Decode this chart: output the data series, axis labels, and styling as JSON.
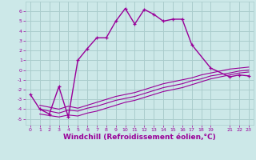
{
  "background_color": "#cce8e8",
  "grid_color": "#aacccc",
  "line_color": "#990099",
  "xlabel": "Windchill (Refroidissement éolien,°C)",
  "xlabel_fontsize": 6.5,
  "xticks": [
    0,
    1,
    2,
    3,
    4,
    5,
    6,
    7,
    8,
    9,
    10,
    11,
    12,
    13,
    14,
    15,
    16,
    17,
    18,
    19,
    21,
    22,
    23
  ],
  "yticks": [
    -5,
    -4,
    -3,
    -2,
    -1,
    0,
    1,
    2,
    3,
    4,
    5,
    6
  ],
  "xlim": [
    -0.5,
    23.5
  ],
  "ylim": [
    -5.6,
    7.0
  ],
  "main_line_x": [
    0,
    1,
    2,
    3,
    4,
    5,
    6,
    7,
    8,
    9,
    10,
    11,
    12,
    13,
    14,
    15,
    16,
    17,
    19,
    21,
    22,
    23
  ],
  "main_line_y": [
    -2.5,
    -4.0,
    -4.5,
    -1.7,
    -4.8,
    1.0,
    2.2,
    3.3,
    3.3,
    5.0,
    6.3,
    4.7,
    6.2,
    5.7,
    5.0,
    5.2,
    5.2,
    2.6,
    0.2,
    -0.7,
    -0.5,
    -0.6
  ],
  "lower_line1_x": [
    1,
    3,
    4,
    5,
    6,
    7,
    8,
    9,
    10,
    11,
    12,
    13,
    14,
    15,
    16,
    17,
    18,
    19,
    21,
    22,
    23
  ],
  "lower_line1_y": [
    -4.0,
    -4.4,
    -4.1,
    -4.2,
    -3.9,
    -3.7,
    -3.4,
    -3.1,
    -2.9,
    -2.7,
    -2.4,
    -2.1,
    -1.8,
    -1.6,
    -1.4,
    -1.1,
    -0.9,
    -0.6,
    -0.3,
    -0.1,
    0.0
  ],
  "lower_line2_x": [
    1,
    3,
    4,
    5,
    6,
    7,
    8,
    9,
    10,
    11,
    12,
    13,
    14,
    15,
    16,
    17,
    18,
    19,
    21,
    22,
    23
  ],
  "lower_line2_y": [
    -4.5,
    -4.8,
    -4.6,
    -4.7,
    -4.4,
    -4.2,
    -3.9,
    -3.6,
    -3.3,
    -3.1,
    -2.8,
    -2.5,
    -2.2,
    -2.0,
    -1.8,
    -1.5,
    -1.2,
    -0.9,
    -0.5,
    -0.3,
    -0.2
  ],
  "lower_line3_x": [
    1,
    3,
    4,
    5,
    6,
    7,
    8,
    9,
    10,
    11,
    12,
    13,
    14,
    15,
    16,
    17,
    18,
    19,
    21,
    22,
    23
  ],
  "lower_line3_y": [
    -3.6,
    -4.0,
    -3.7,
    -3.9,
    -3.6,
    -3.3,
    -3.0,
    -2.7,
    -2.5,
    -2.3,
    -2.0,
    -1.7,
    -1.4,
    -1.2,
    -1.0,
    -0.8,
    -0.5,
    -0.3,
    0.1,
    0.2,
    0.3
  ]
}
